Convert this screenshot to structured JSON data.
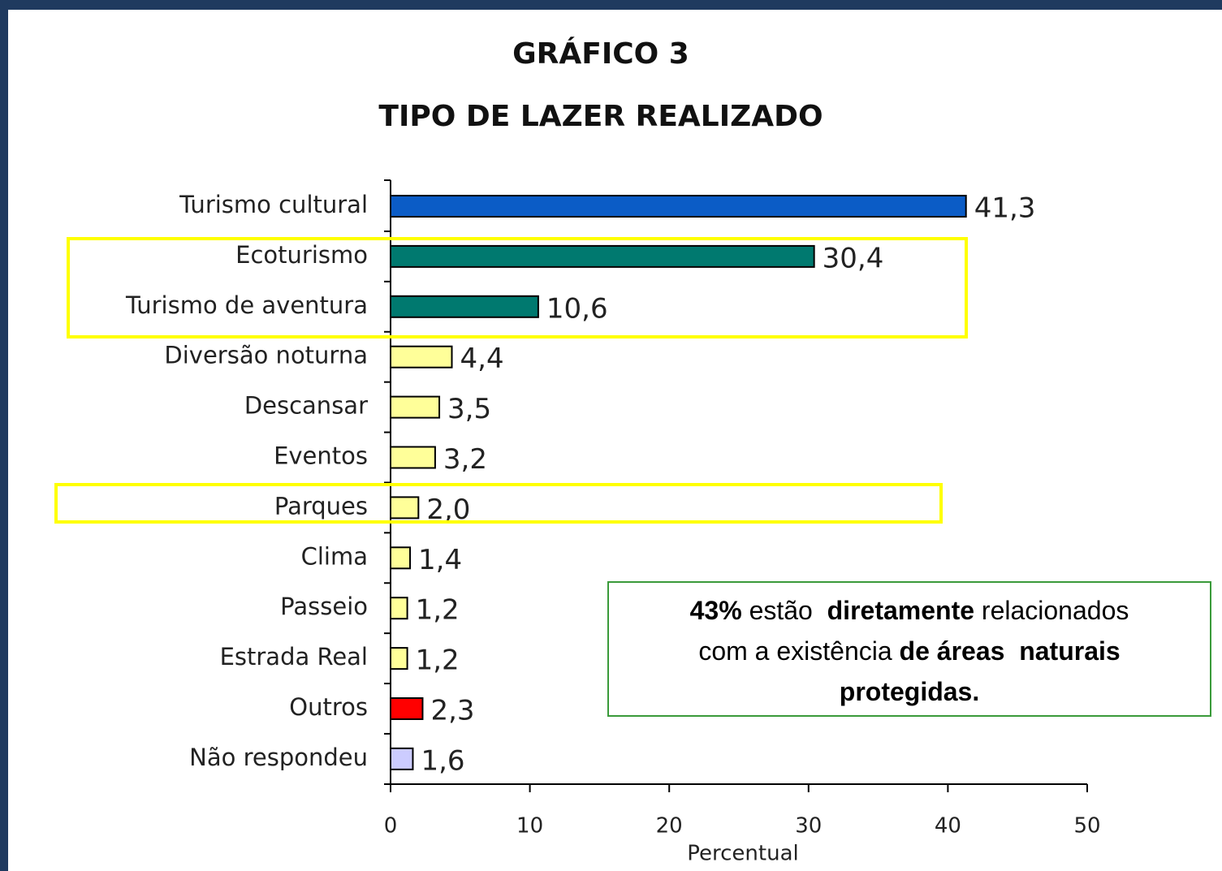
{
  "chart_data": {
    "type": "barh",
    "title": "GRÁFICO 3",
    "subtitle": "TIPO DE LAZER REALIZADO",
    "xlabel": "Percentual",
    "categories": [
      "Turismo cultural",
      "Ecoturismo",
      "Turismo de aventura",
      "Diversão noturna",
      "Descansar",
      "Eventos",
      "Parques",
      "Clima",
      "Passeio",
      "Estrada Real",
      "Outros",
      "Não respondeu"
    ],
    "values": [
      41.3,
      30.4,
      10.6,
      4.4,
      3.5,
      3.2,
      2.0,
      1.4,
      1.2,
      1.2,
      2.3,
      1.6
    ],
    "value_labels": [
      "41,3",
      "30,4",
      "10,6",
      "4,4",
      "3,5",
      "3,2",
      "2,0",
      "1,4",
      "1,2",
      "1,2",
      "2,3",
      "1,6"
    ],
    "colors": [
      "#0b5cc6",
      "#00796f",
      "#00796f",
      "#ffff99",
      "#ffff99",
      "#ffff99",
      "#ffff99",
      "#ffff99",
      "#ffff99",
      "#ffff99",
      "#ff0000",
      "#ccccff"
    ],
    "xlim": [
      0,
      50
    ],
    "xticks": [
      0,
      10,
      20,
      30,
      40,
      50
    ],
    "annotation": [
      [
        {
          "text": "43%",
          "bold": true
        },
        {
          "text": " estão  ",
          "bold": false
        },
        {
          "text": "diretamente",
          "bold": true
        },
        {
          "text": " relacionados",
          "bold": false
        }
      ],
      [
        {
          "text": "com a existência ",
          "bold": false
        },
        {
          "text": "de áreas  naturais",
          "bold": true
        }
      ],
      [
        {
          "text": "protegidas.",
          "bold": true
        }
      ]
    ]
  }
}
